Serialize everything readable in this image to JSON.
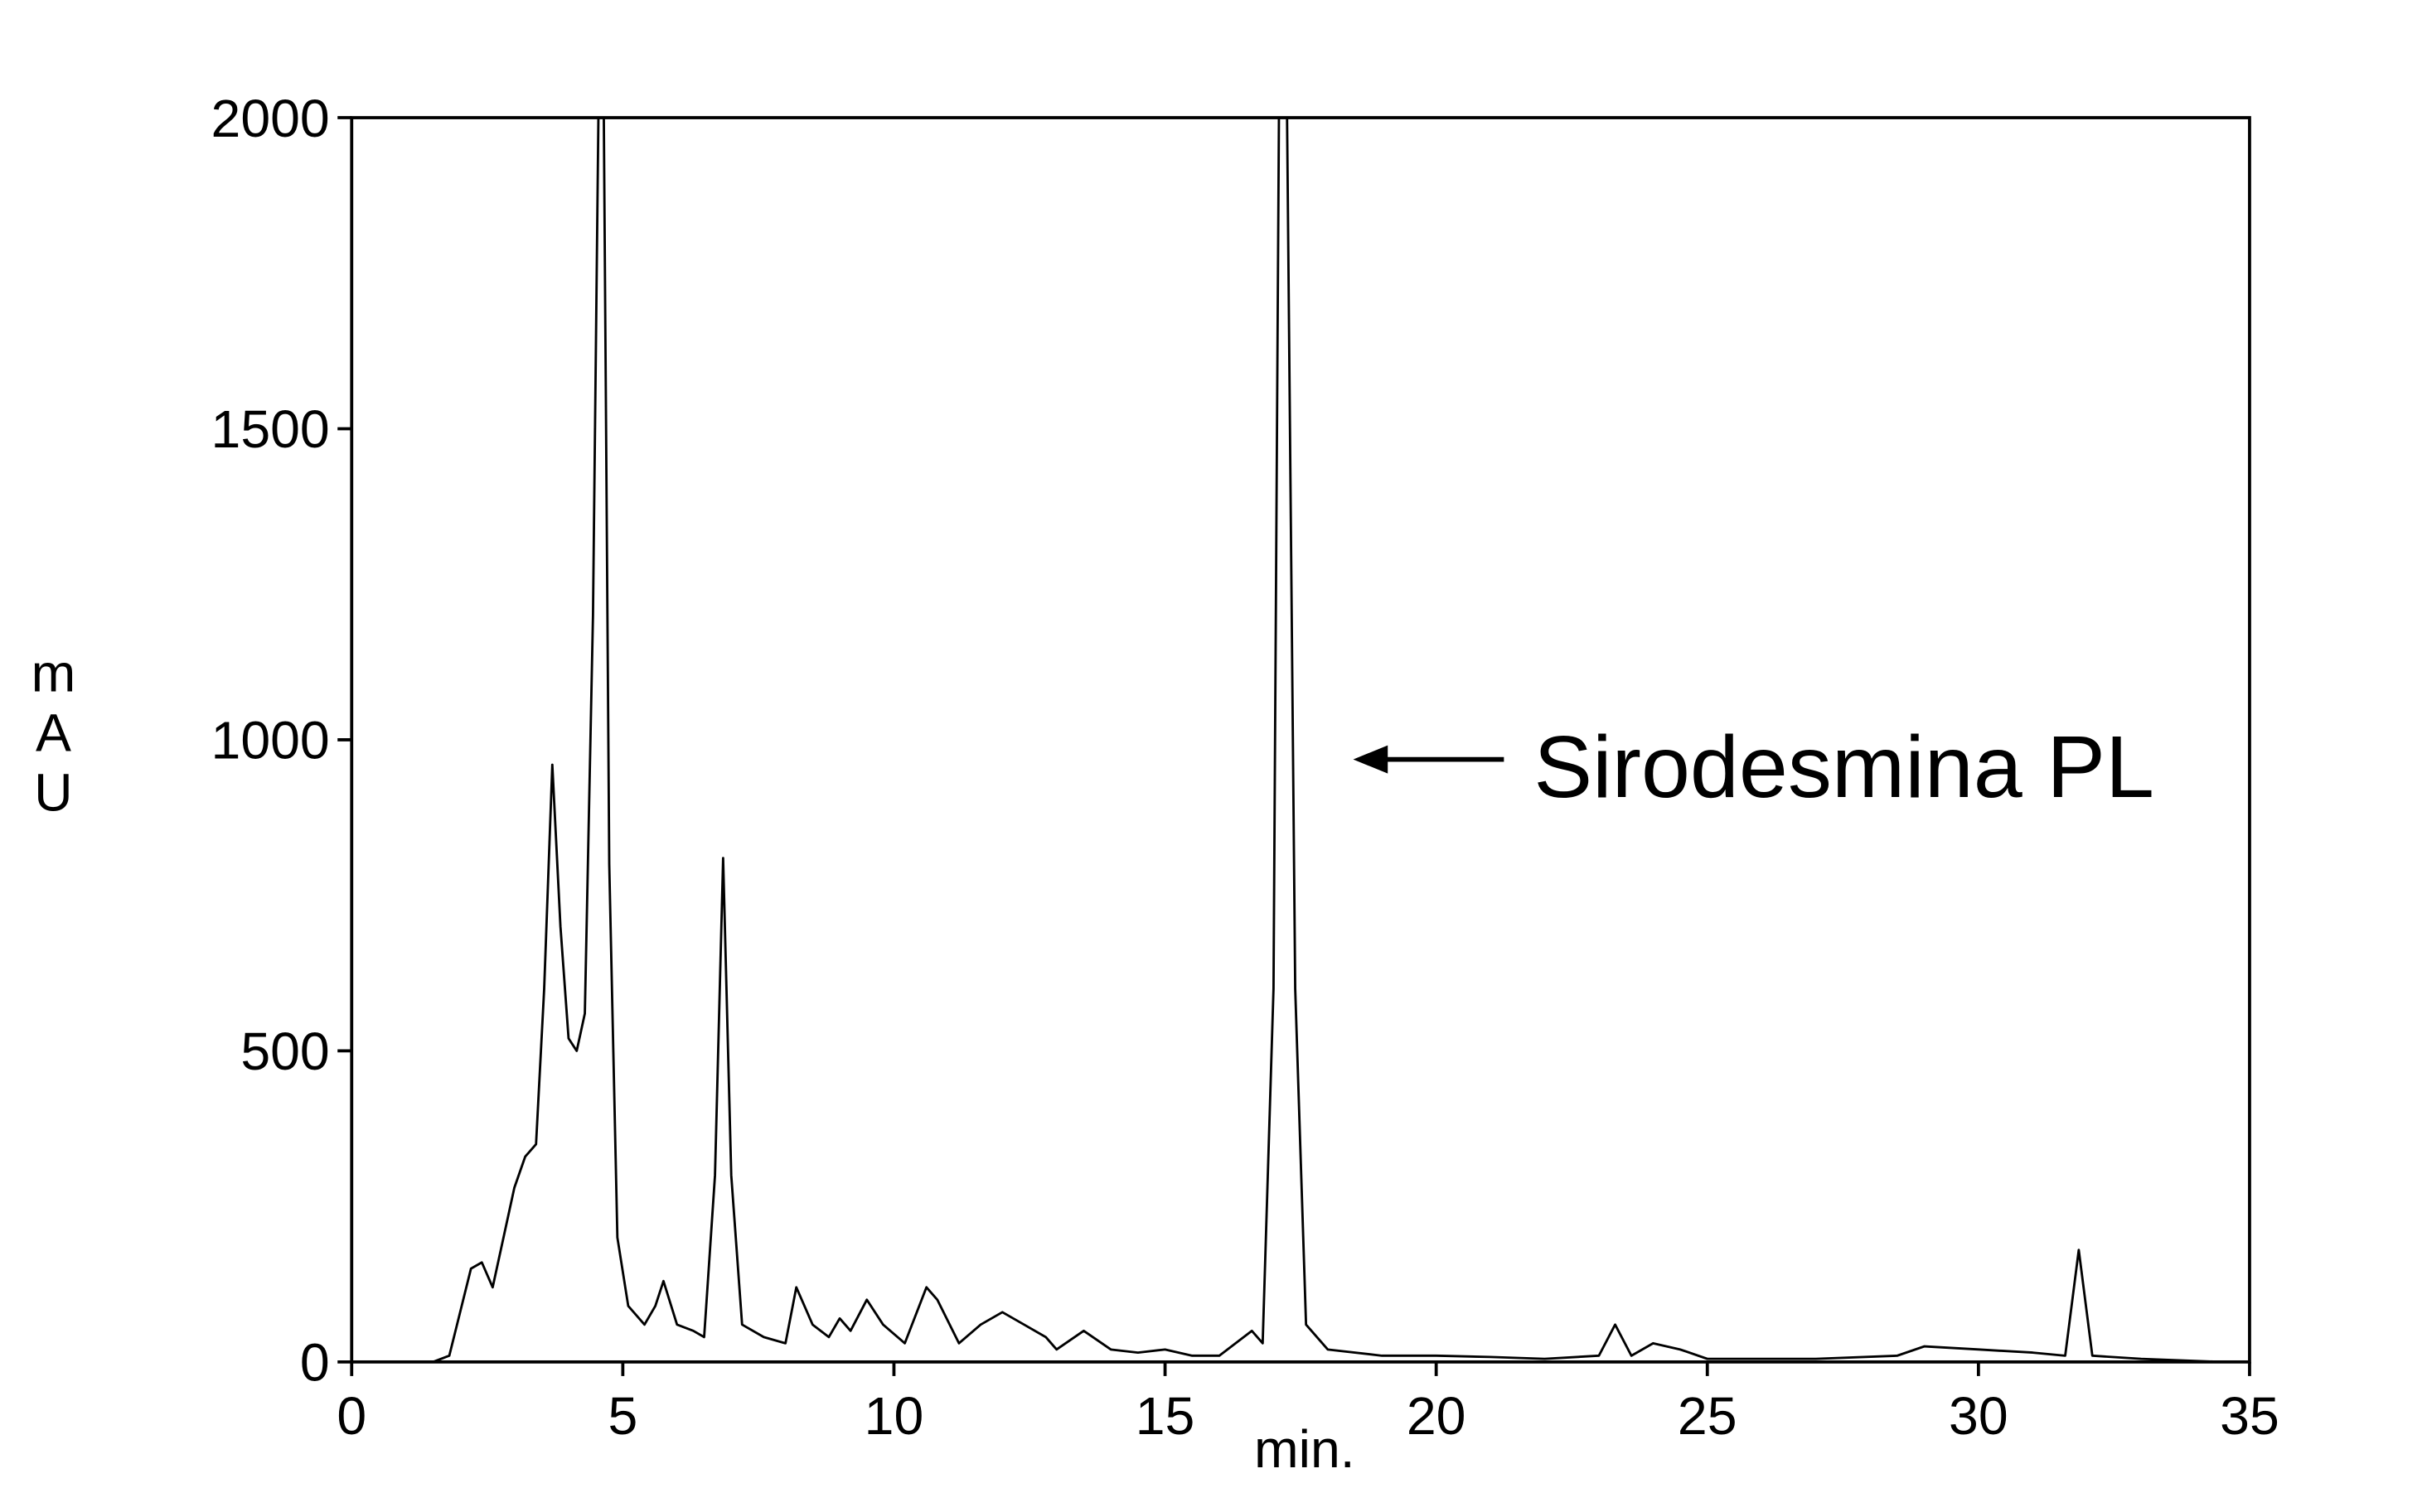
{
  "chart_data": {
    "type": "line",
    "xlabel": "min.",
    "ylabel": "mAU",
    "annotation": "Sirodesmina PL",
    "color": "#000000",
    "x": [
      1.5,
      1.8,
      2.0,
      2.2,
      2.4,
      2.6,
      2.8,
      3.0,
      3.2,
      3.4,
      3.55,
      3.7,
      3.85,
      4.0,
      4.15,
      4.3,
      4.45,
      4.55,
      4.65,
      4.75,
      4.9,
      5.1,
      5.4,
      5.6,
      5.75,
      6.0,
      6.3,
      6.5,
      6.7,
      6.85,
      7.0,
      7.2,
      7.6,
      8.0,
      8.2,
      8.5,
      8.8,
      9.0,
      9.2,
      9.5,
      9.8,
      10.2,
      10.6,
      10.8,
      11.2,
      11.6,
      12.0,
      12.4,
      12.8,
      13.0,
      13.5,
      14.0,
      14.5,
      15.0,
      15.5,
      16.0,
      16.6,
      16.8,
      17.0,
      17.1,
      17.25,
      17.4,
      17.6,
      18.0,
      19.0,
      20.0,
      21.0,
      22.0,
      23.0,
      23.3,
      23.6,
      24.0,
      24.5,
      25.0,
      27.0,
      28.5,
      29.0,
      30.0,
      31.0,
      31.6,
      31.85,
      32.1,
      33.0,
      34.5
    ],
    "values": [
      0,
      10,
      80,
      150,
      160,
      120,
      200,
      280,
      330,
      350,
      600,
      960,
      700,
      520,
      500,
      560,
      1200,
      2000,
      2000,
      800,
      200,
      90,
      60,
      90,
      130,
      60,
      50,
      40,
      300,
      810,
      300,
      60,
      40,
      30,
      120,
      60,
      40,
      70,
      50,
      100,
      60,
      30,
      120,
      100,
      30,
      60,
      80,
      60,
      40,
      20,
      50,
      20,
      15,
      20,
      10,
      10,
      50,
      30,
      600,
      2000,
      2000,
      600,
      60,
      20,
      10,
      10,
      8,
      5,
      10,
      60,
      10,
      30,
      20,
      5,
      5,
      10,
      25,
      20,
      15,
      10,
      180,
      10,
      5,
      0
    ],
    "xlim": [
      0,
      35
    ],
    "xticks": [
      0,
      5,
      10,
      15,
      20,
      25,
      30,
      35
    ],
    "ylim": [
      0,
      2000
    ],
    "yticks": [
      0,
      500,
      1000,
      1500,
      2000
    ]
  }
}
